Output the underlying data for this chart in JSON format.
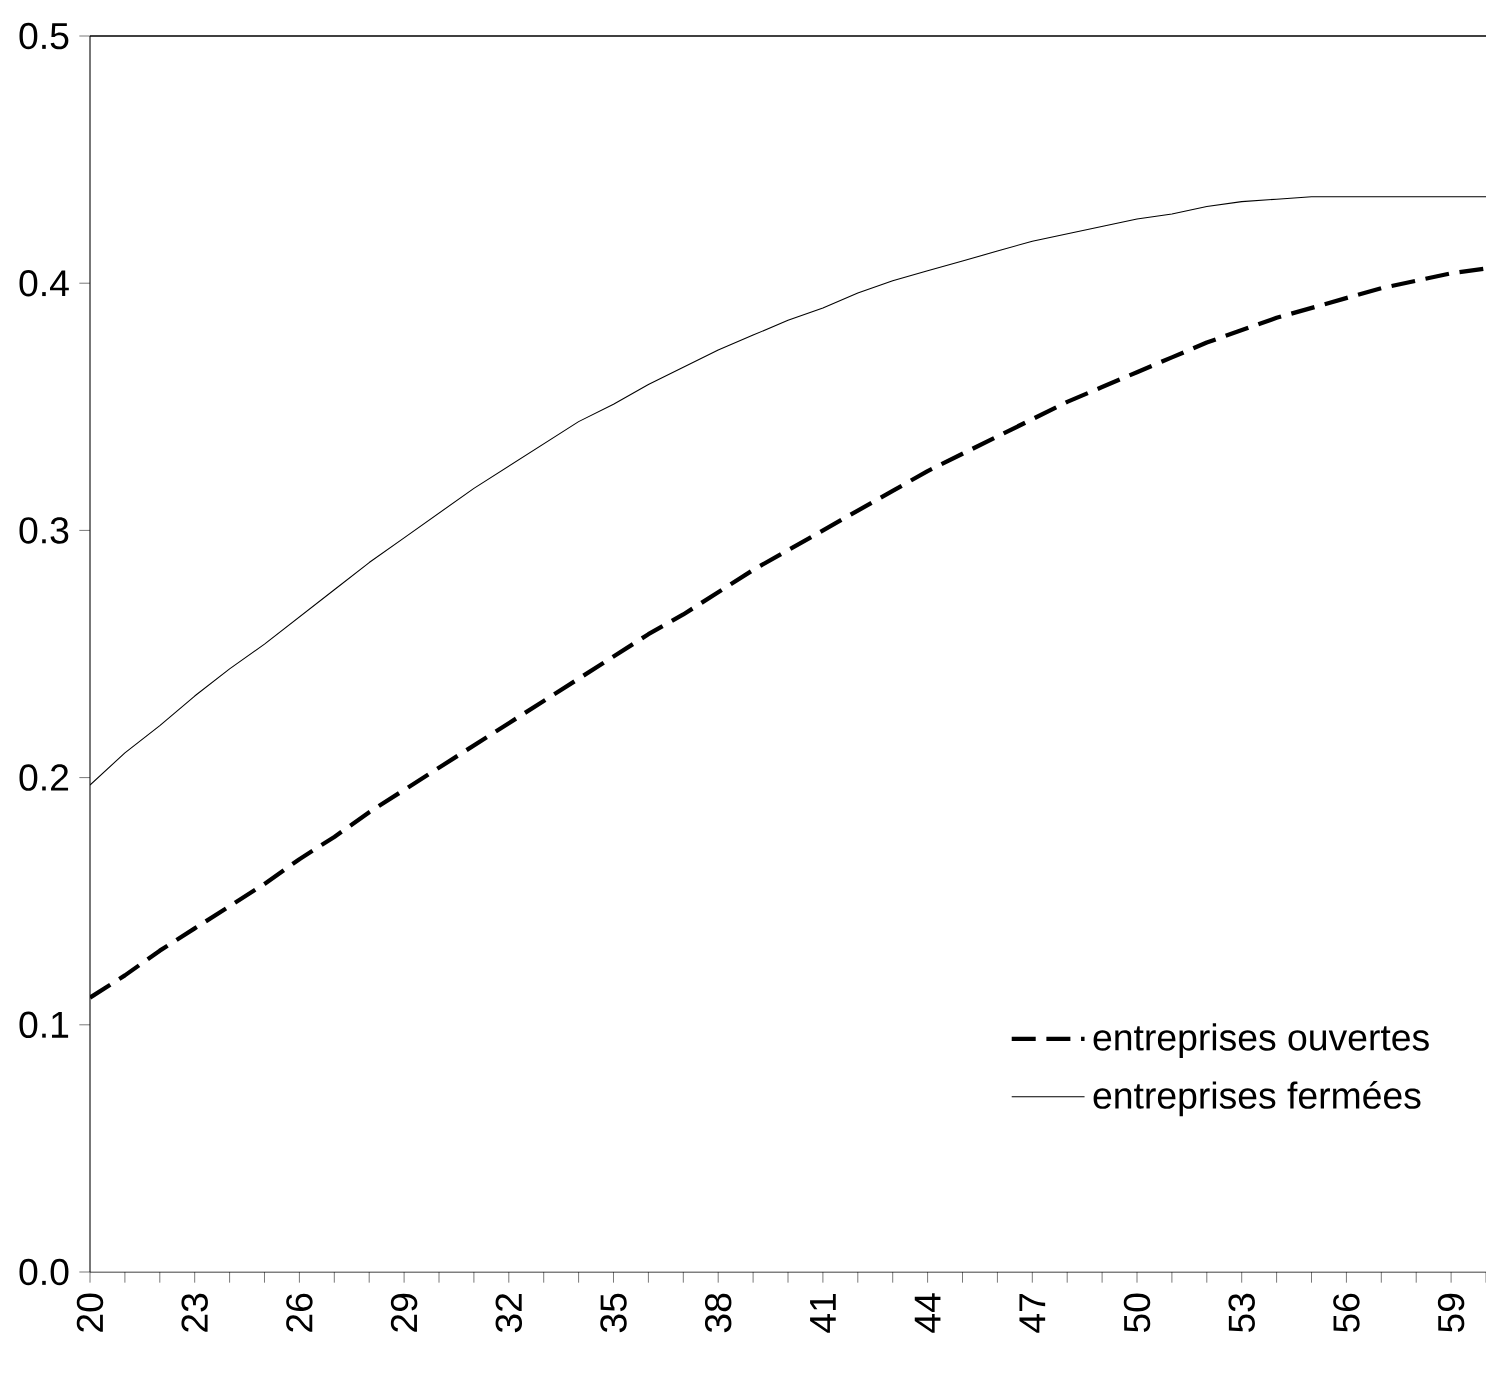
{
  "chart_data": {
    "type": "line",
    "categories": [
      "20",
      null,
      null,
      "23",
      null,
      null,
      "26",
      null,
      null,
      "29",
      null,
      null,
      "32",
      null,
      null,
      "35",
      null,
      null,
      "38",
      null,
      null,
      "41",
      null,
      null,
      "44",
      null,
      null,
      "47",
      null,
      null,
      "50",
      null,
      null,
      "53",
      null,
      null,
      "56",
      null,
      null,
      "59",
      null
    ],
    "series": [
      {
        "name": "entreprises ouvertes",
        "color": "#000000",
        "line_style": "dashed",
        "values": [
          0.111,
          0.12,
          0.13,
          0.139,
          0.148,
          0.157,
          0.167,
          0.176,
          0.186,
          0.195,
          0.204,
          0.213,
          0.222,
          0.231,
          0.24,
          0.249,
          0.258,
          0.266,
          0.275,
          0.284,
          0.292,
          0.3,
          0.308,
          0.316,
          0.324,
          0.331,
          0.338,
          0.345,
          0.352,
          0.358,
          0.364,
          0.37,
          0.376,
          0.381,
          0.386,
          0.39,
          0.394,
          0.398,
          0.401,
          0.404,
          0.406
        ]
      },
      {
        "name": "entreprises fermées",
        "color": "#000000",
        "line_style": "solid",
        "values": [
          0.197,
          0.21,
          0.221,
          0.233,
          0.244,
          0.254,
          0.265,
          0.276,
          0.287,
          0.297,
          0.307,
          0.317,
          0.326,
          0.335,
          0.344,
          0.351,
          0.359,
          0.366,
          0.373,
          0.379,
          0.385,
          0.39,
          0.396,
          0.401,
          0.405,
          0.409,
          0.413,
          0.417,
          0.42,
          0.423,
          0.426,
          0.428,
          0.431,
          0.433,
          0.434,
          0.435,
          0.435,
          0.435,
          0.435,
          0.435,
          0.435
        ]
      }
    ],
    "ylim": [
      0,
      0.5
    ],
    "yticks": [
      {
        "value": 0,
        "label": "0.0"
      },
      0.1,
      0.2,
      0.3,
      0.4,
      0.5
    ],
    "legend": "bottom right"
  }
}
